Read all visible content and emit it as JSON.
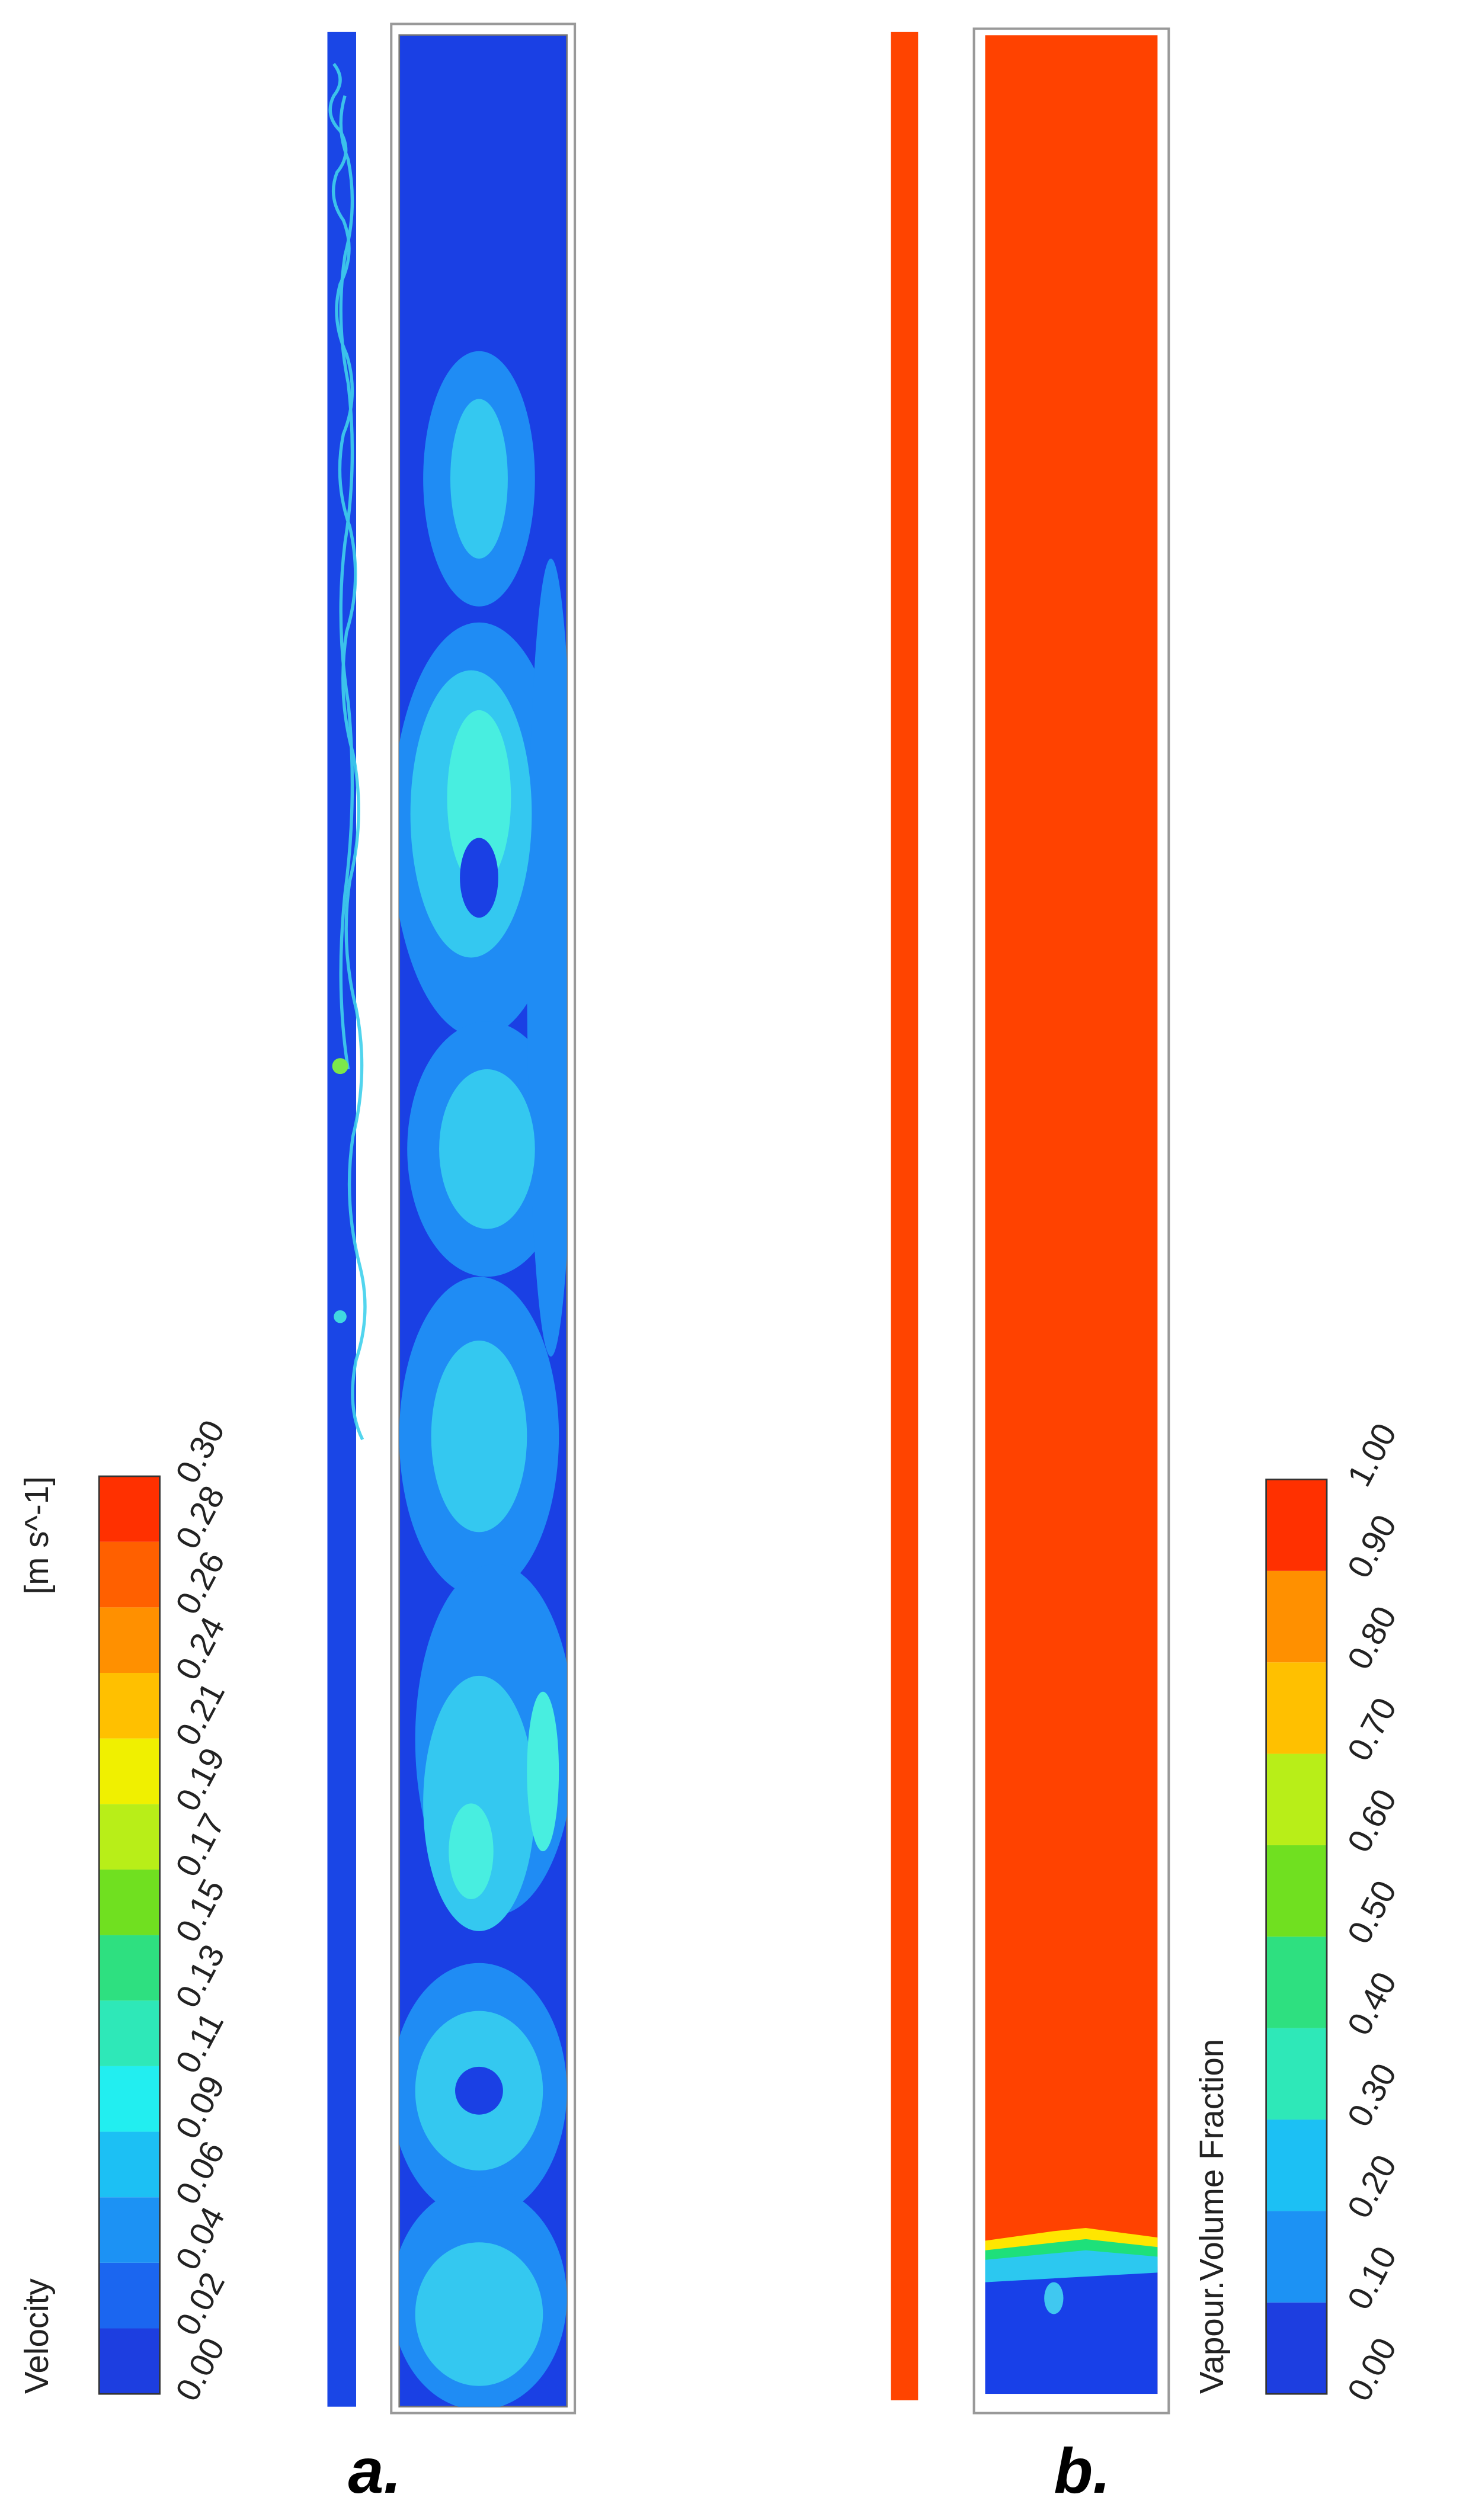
{
  "panels": [
    {
      "label": "a.",
      "colorbar": {
        "title": "Velocity",
        "unit": "[m s^-1]",
        "ticks": [
          "0.00",
          "0.02",
          "0.04",
          "0.06",
          "0.09",
          "0.11",
          "0.13",
          "0.15",
          "0.17",
          "0.19",
          "0.21",
          "0.24",
          "0.26",
          "0.28",
          "0.30"
        ]
      }
    },
    {
      "label": "b.",
      "colorbar": {
        "title": "Vapour.Volume Fraction",
        "ticks": [
          "0.00",
          "0.10",
          "0.20",
          "0.30",
          "0.40",
          "0.50",
          "0.60",
          "0.70",
          "0.80",
          "0.90",
          "1.00"
        ]
      }
    }
  ]
}
